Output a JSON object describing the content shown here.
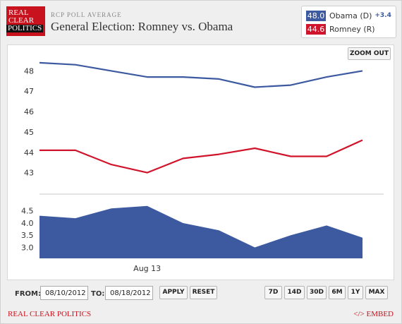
{
  "header": {
    "logo_lines": [
      "REAL",
      "CLEAR",
      "POLITICS"
    ],
    "pre_title": "RCP POLL AVERAGE",
    "title": "General Election: Romney vs. Obama"
  },
  "legend": {
    "obama": {
      "value": "48.0",
      "label": "Obama (D)",
      "spread": "+3.4"
    },
    "romney": {
      "value": "44.6",
      "label": "Romney (R)"
    }
  },
  "zoom_out_label": "ZOOM OUT",
  "controls": {
    "from_label": "FROM:",
    "from_value": "08/10/2012",
    "to_label": "TO:",
    "to_value": "08/18/2012",
    "apply_label": "APPLY",
    "reset_label": "RESET",
    "ranges": [
      "7D",
      "14D",
      "30D",
      "6M",
      "1Y",
      "MAX"
    ]
  },
  "footer": {
    "left": "REAL CLEAR POLITICS",
    "right": "</> EMBED"
  },
  "colors": {
    "obama": "#3d5aa0",
    "romney": "#d0142c",
    "brand": "#c8121d",
    "spread_fill": "#3d5aa0"
  },
  "chart_data": [
    {
      "type": "line",
      "title": "",
      "x": [
        "2012-08-10",
        "2012-08-11",
        "2012-08-12",
        "2012-08-13",
        "2012-08-14",
        "2012-08-15",
        "2012-08-16",
        "2012-08-17",
        "2012-08-18",
        "2012-08-19"
      ],
      "x_tick_labels": [
        "Aug 13"
      ],
      "x_tick_dates": [
        "2012-08-13"
      ],
      "series": [
        {
          "name": "Obama (D)",
          "values": [
            48.4,
            48.3,
            48.0,
            47.7,
            47.7,
            47.6,
            47.2,
            47.3,
            47.7,
            48.0
          ]
        },
        {
          "name": "Romney (R)",
          "values": [
            44.1,
            44.1,
            43.4,
            43.0,
            43.7,
            43.9,
            44.2,
            43.8,
            43.8,
            44.6
          ]
        }
      ],
      "yticks": [
        43,
        44,
        45,
        46,
        47,
        48
      ],
      "ylim": [
        42.05,
        48.95
      ],
      "grid": false
    },
    {
      "type": "area",
      "title": "",
      "x": [
        "2012-08-10",
        "2012-08-11",
        "2012-08-12",
        "2012-08-13",
        "2012-08-14",
        "2012-08-15",
        "2012-08-16",
        "2012-08-17",
        "2012-08-18",
        "2012-08-19"
      ],
      "series": [
        {
          "name": "Spread",
          "values": [
            4.3,
            4.2,
            4.6,
            4.7,
            4.0,
            3.7,
            3.0,
            3.5,
            3.9,
            3.4
          ]
        }
      ],
      "yticks": [
        3.0,
        3.5,
        4.0,
        4.5
      ],
      "ylim": [
        2.55,
        5.1
      ],
      "grid": false
    }
  ]
}
